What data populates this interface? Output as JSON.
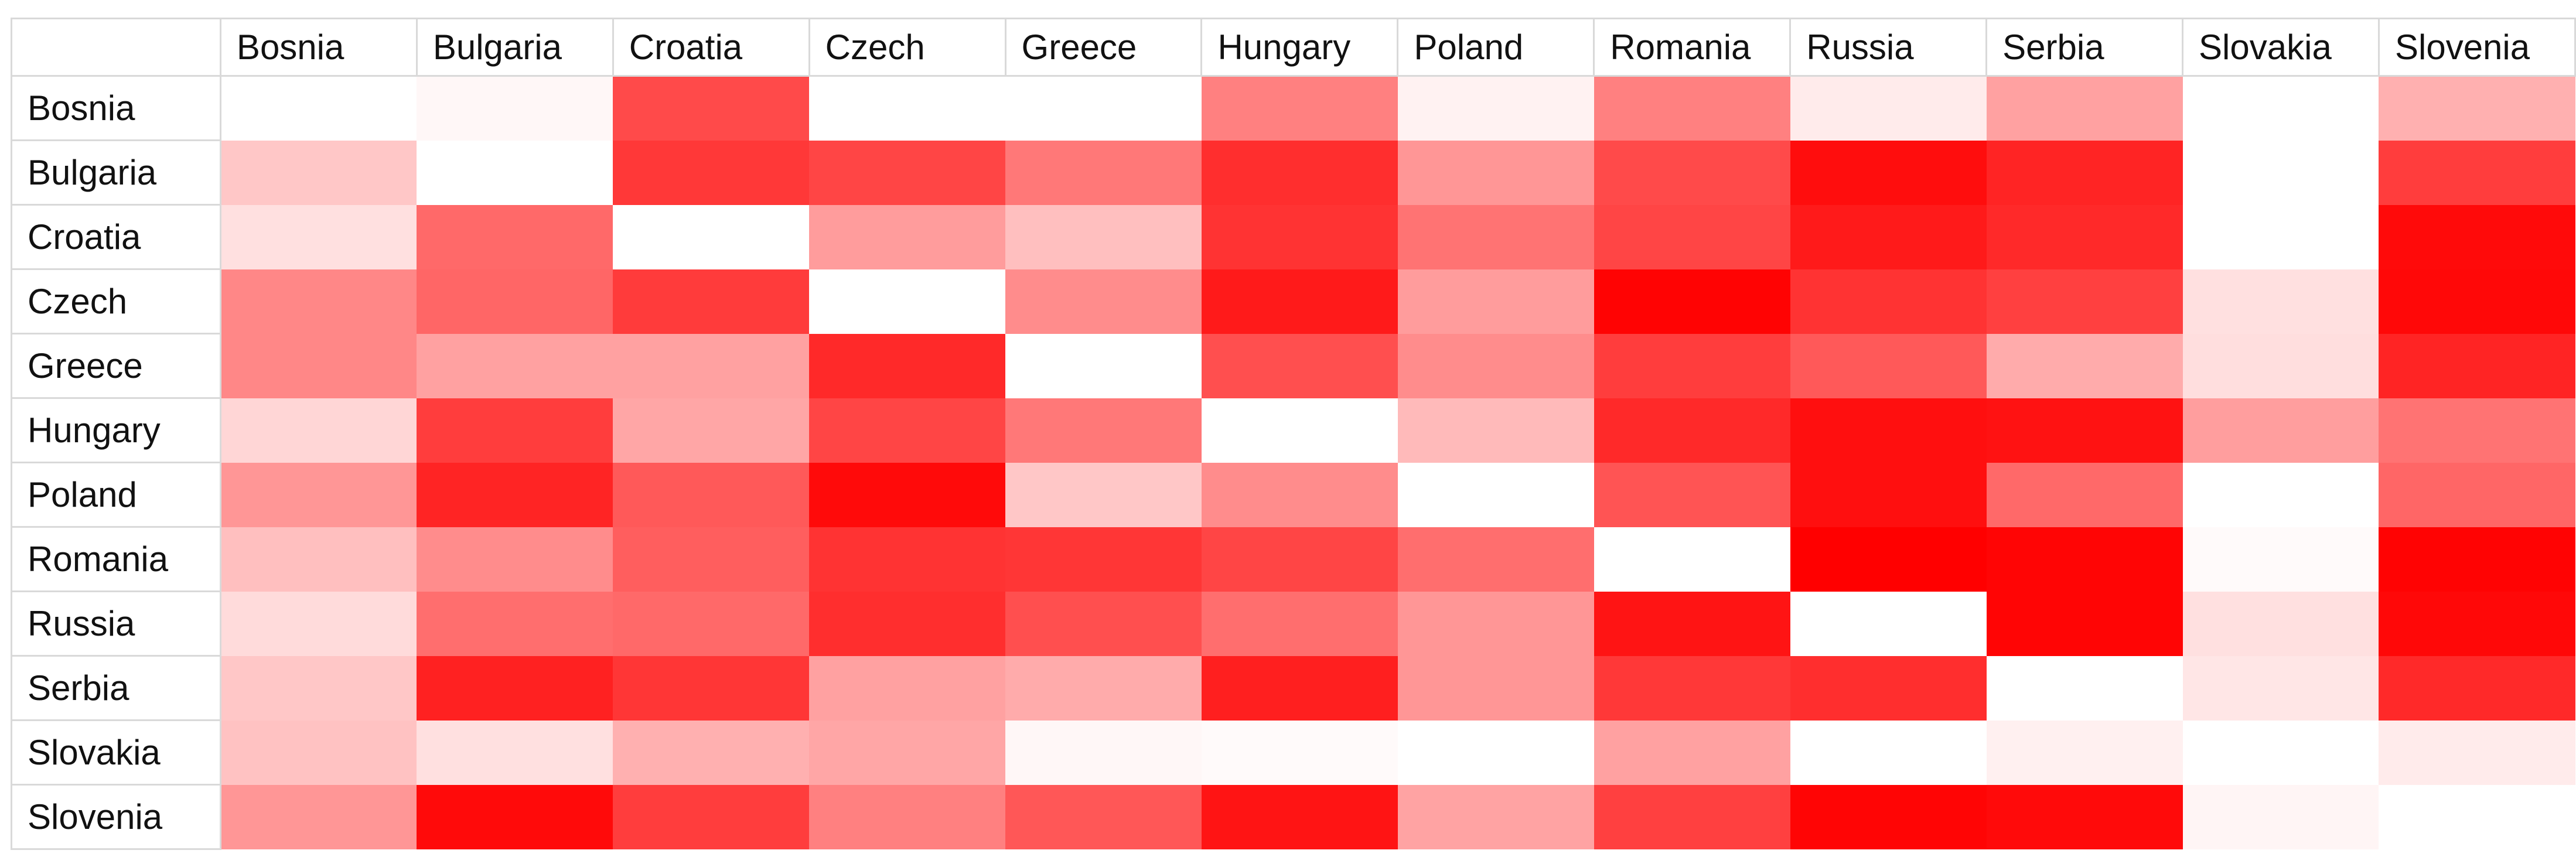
{
  "table": {
    "corner_label": "",
    "grid_border_color": "#d9d9d9",
    "text_color": "#111111"
  },
  "chart_data": {
    "type": "heatmap",
    "title": "",
    "xlabel": "",
    "ylabel": "",
    "legend": "none",
    "grid": "off",
    "categories": [
      "Bosnia",
      "Bulgaria",
      "Croatia",
      "Czech",
      "Greece",
      "Hungary",
      "Poland",
      "Romania",
      "Russia",
      "Serbia",
      "Slovakia",
      "Slovenia"
    ],
    "rows": [
      "Bosnia",
      "Bulgaria",
      "Croatia",
      "Czech",
      "Greece",
      "Hungary",
      "Poland",
      "Romania",
      "Russia",
      "Serbia",
      "Slovakia",
      "Slovenia"
    ],
    "value_range": [
      0,
      100
    ],
    "color_scale": {
      "min_color": "#ffffff",
      "max_color": "#ff0000"
    },
    "values": [
      [
        0,
        3,
        71,
        0,
        0,
        50,
        5,
        50,
        8,
        37,
        0,
        31
      ],
      [
        22,
        0,
        78,
        73,
        53,
        82,
        41,
        71,
        95,
        86,
        0,
        76
      ],
      [
        12,
        59,
        0,
        39,
        25,
        80,
        55,
        73,
        90,
        84,
        0,
        96
      ],
      [
        47,
        60,
        77,
        0,
        45,
        90,
        39,
        99,
        80,
        75,
        12,
        97
      ],
      [
        47,
        37,
        37,
        84,
        0,
        69,
        45,
        76,
        65,
        33,
        13,
        86
      ],
      [
        16,
        76,
        35,
        73,
        53,
        0,
        27,
        84,
        94,
        93,
        38,
        55
      ],
      [
        41,
        86,
        65,
        96,
        22,
        45,
        0,
        67,
        94,
        59,
        0,
        60
      ],
      [
        25,
        45,
        63,
        80,
        79,
        73,
        57,
        0,
        100,
        98,
        2,
        99
      ],
      [
        14,
        57,
        59,
        82,
        69,
        57,
        41,
        92,
        0,
        98,
        12,
        97
      ],
      [
        22,
        87,
        79,
        37,
        33,
        88,
        41,
        78,
        82,
        0,
        10,
        84
      ],
      [
        24,
        12,
        31,
        35,
        3,
        2,
        0,
        37,
        0,
        6,
        0,
        8
      ],
      [
        41,
        96,
        76,
        50,
        66,
        92,
        36,
        75,
        98,
        96,
        4,
        0
      ]
    ]
  }
}
